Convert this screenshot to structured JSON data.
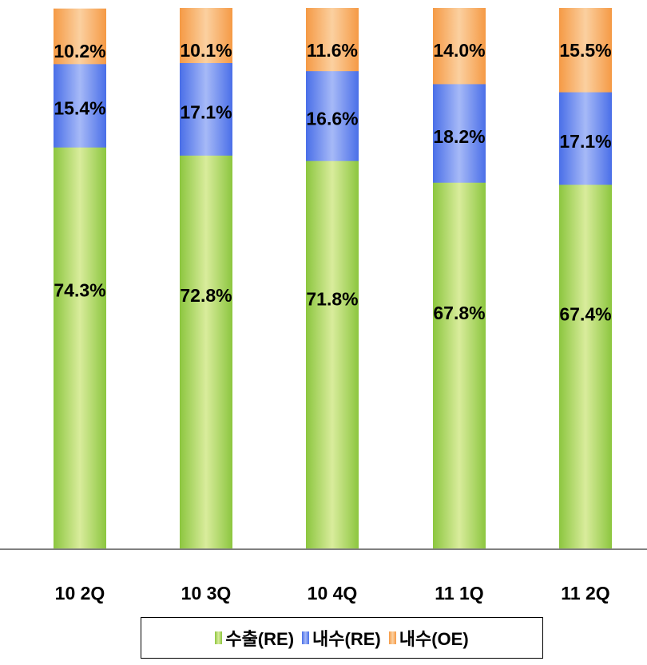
{
  "colors": {
    "RE_export": "#9ed34c",
    "RE_domestic": "#5b7ff0",
    "OE_domestic": "#f6a24f",
    "axis": "#808080"
  },
  "chart_data": {
    "type": "bar",
    "stacked": true,
    "title": "",
    "xlabel": "",
    "ylabel": "",
    "categories": [
      "10 2Q",
      "10 3Q",
      "10 4Q",
      "11 1Q",
      "11 2Q"
    ],
    "series": [
      {
        "name": "수출(RE)",
        "color": "#9ed34c",
        "values": [
          74.3,
          72.8,
          71.8,
          67.8,
          67.4
        ],
        "labels": [
          "74.3%",
          "72.8%",
          "71.8%",
          "67.8%",
          "67.4%"
        ]
      },
      {
        "name": "내수(RE)",
        "color": "#5b7ff0",
        "values": [
          15.4,
          17.1,
          16.6,
          18.2,
          17.1
        ],
        "labels": [
          "15.4%",
          "17.1%",
          "16.6%",
          "18.2%",
          "17.1%"
        ]
      },
      {
        "name": "내수(OE)",
        "color": "#f6a24f",
        "values": [
          10.2,
          10.1,
          11.6,
          14.0,
          15.5
        ],
        "labels": [
          "10.2%",
          "10.1%",
          "11.6%",
          "14.0%",
          "15.5%"
        ]
      }
    ],
    "ylim": [
      0,
      100
    ],
    "grid": false,
    "legend_position": "bottom"
  }
}
